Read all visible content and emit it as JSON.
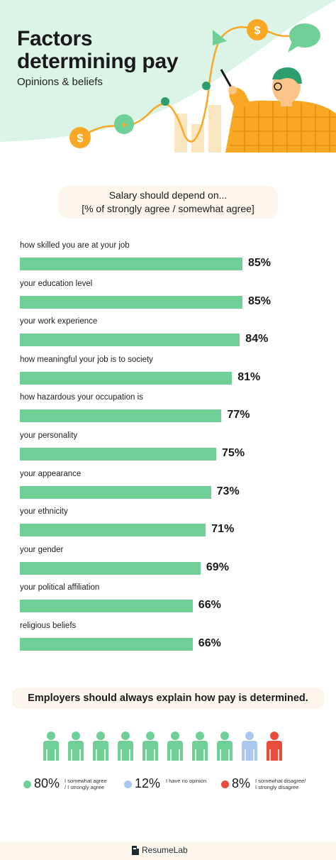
{
  "header": {
    "title_line1": "Factors",
    "title_line2": "determining pay",
    "subtitle": "Opinions & beliefs"
  },
  "chart_data": {
    "type": "bar",
    "orientation": "horizontal",
    "title_line1": "Salary should depend on...",
    "title_line2": "[% of strongly agree / somewhat agree]",
    "categories": [
      "how skilled you are at your job",
      "your education level",
      "your work experience",
      "how meaningful your job is to society",
      "how hazardous your occupation is",
      "your personality",
      "your appearance",
      "your ethnicity",
      "your gender",
      "your political affiliation",
      "religious beliefs"
    ],
    "values": [
      85,
      85,
      84,
      81,
      77,
      75,
      73,
      71,
      69,
      66,
      66
    ],
    "value_suffix": "%",
    "bar_color": "#6fcf97"
  },
  "employers": {
    "headline": "Employers should always explain how pay is determined.",
    "people": [
      "agree",
      "agree",
      "agree",
      "agree",
      "agree",
      "agree",
      "agree",
      "agree",
      "neutral",
      "disagree"
    ],
    "colors": {
      "agree": "#6fcf97",
      "neutral": "#a9c8f0",
      "disagree": "#e74c3c"
    },
    "legend": [
      {
        "key": "agree",
        "pct": "80%",
        "text": "I somewhat agree\n/ I strongly agree"
      },
      {
        "key": "neutral",
        "pct": "12%",
        "text": "I have no opinion"
      },
      {
        "key": "disagree",
        "pct": "8%",
        "text": "I somewhat disagree/\nI strongly disagree"
      }
    ]
  },
  "footer": {
    "brand": "ResumeLab"
  },
  "icons": [
    "dollar-coin-icon",
    "plus-coin-icon",
    "speech-bubble-icon",
    "presenter-person-icon",
    "person-icon",
    "resumelab-logo-icon"
  ],
  "colors": {
    "green": "#6fcf97",
    "mint": "#d9f2e6",
    "orange": "#f9a825",
    "cream": "#fdf6ec"
  }
}
